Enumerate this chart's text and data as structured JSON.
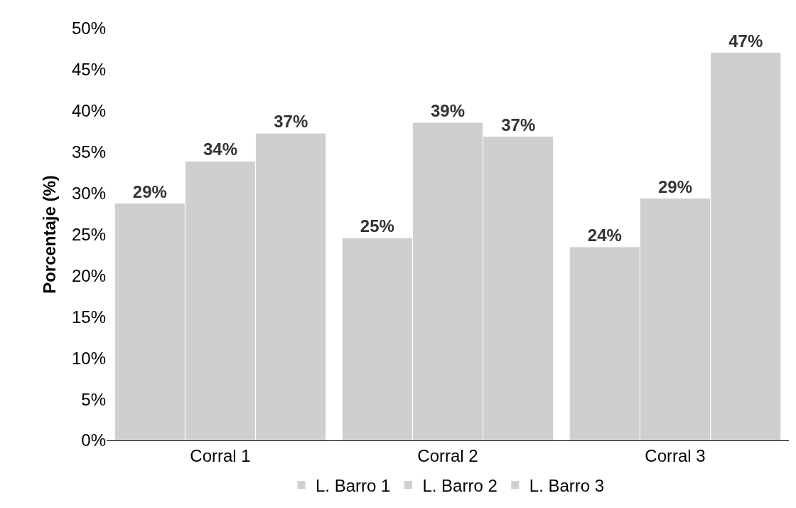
{
  "chart_data": {
    "type": "bar",
    "ylabel": "Porcentaje (%)",
    "categories": [
      "Corral 1",
      "Corral 2",
      "Corral 3"
    ],
    "series": [
      {
        "name": "L. Barro 1",
        "color": "#d0cece",
        "values": [
          28.8,
          24.6,
          23.5
        ],
        "value_labels": [
          "29%",
          "25%",
          "24%"
        ]
      },
      {
        "name": "L. Barro 2",
        "color": "#d0cece",
        "values": [
          33.9,
          38.6,
          29.4
        ],
        "value_labels": [
          "34%",
          "39%",
          "29%"
        ]
      },
      {
        "name": "L. Barro 3",
        "color": "#d0cece",
        "values": [
          37.3,
          36.9,
          47.1
        ],
        "value_labels": [
          "37%",
          "37%",
          "47%"
        ]
      }
    ],
    "ylim": [
      0,
      50
    ],
    "yticks": [
      {
        "value": 0,
        "label": "0%"
      },
      {
        "value": 5,
        "label": "5%"
      },
      {
        "value": 10,
        "label": "10%"
      },
      {
        "value": 15,
        "label": "15%"
      },
      {
        "value": 20,
        "label": "20%"
      },
      {
        "value": 25,
        "label": "25%"
      },
      {
        "value": 30,
        "label": "30%"
      },
      {
        "value": 35,
        "label": "35%"
      },
      {
        "value": 40,
        "label": "40%"
      },
      {
        "value": 45,
        "label": "45%"
      },
      {
        "value": 50,
        "label": "50%"
      }
    ],
    "legend": "bottom"
  }
}
